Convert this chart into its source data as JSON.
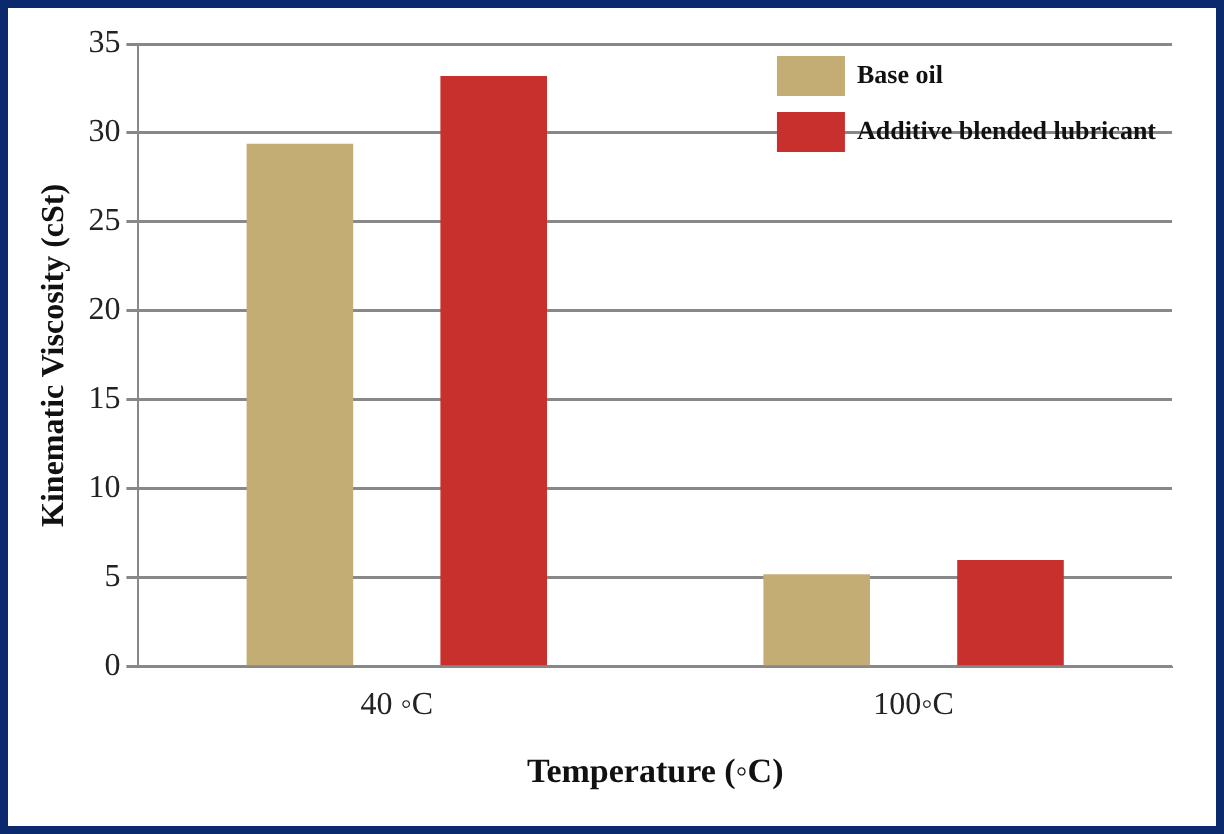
{
  "chart_data": {
    "type": "bar",
    "xlabel": "Temperature (◦C)",
    "ylabel": "Kinematic Viscosity (cSt)",
    "categories": [
      "40 ◦C",
      "100◦C"
    ],
    "series": [
      {
        "name": "Base oil",
        "color": "#c4ad74",
        "values": [
          29.4,
          5.2
        ]
      },
      {
        "name": "Additive blended lubricant",
        "color": "#c8302e",
        "values": [
          33.2,
          6.0
        ]
      }
    ],
    "ylim": [
      0,
      35
    ],
    "yticks": [
      0,
      5,
      10,
      15,
      20,
      25,
      30,
      35
    ],
    "grid": "y",
    "legend": "top right"
  }
}
